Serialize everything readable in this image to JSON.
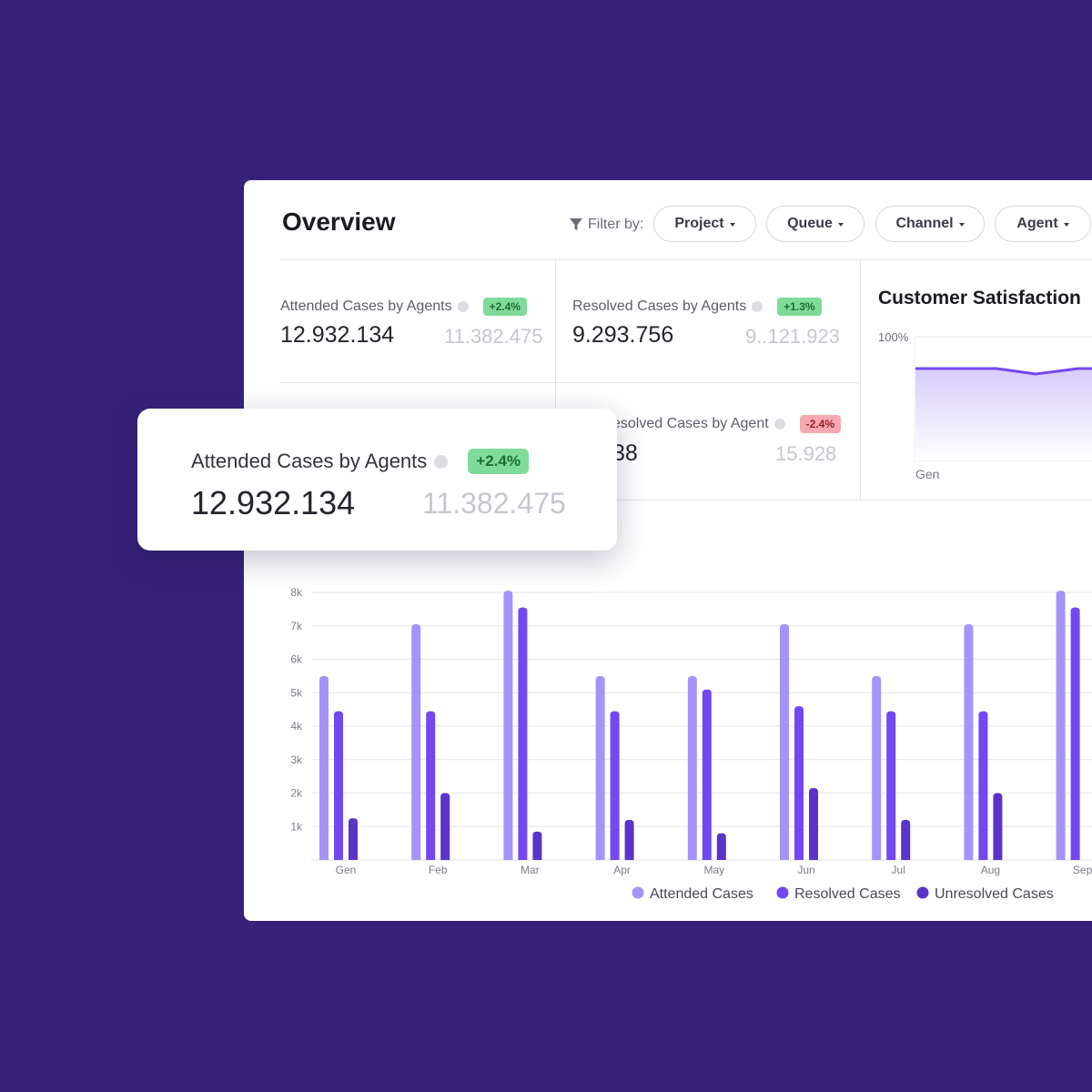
{
  "header": {
    "title": "Overview",
    "filter_label": "Filter by:",
    "filters": [
      {
        "label": "Project"
      },
      {
        "label": "Queue"
      },
      {
        "label": "Channel"
      },
      {
        "label": "Agent"
      }
    ]
  },
  "stats": {
    "attended": {
      "label": "Attended Cases by Agents",
      "badge": "+2.4%",
      "value": "12.932.134",
      "previous": "11.382.475"
    },
    "resolved": {
      "label": "Resolved Cases by Agents",
      "badge": "+1.3%",
      "value": "9.293.756",
      "previous": "9..121.923"
    },
    "unresolved": {
      "label": "esolved Cases by Agent",
      "badge": "-2.4%",
      "value": "38",
      "previous": "15.928"
    }
  },
  "floating_card": {
    "label": "Attended Cases by Agents",
    "badge": "+2.4%",
    "value": "12.932.134",
    "previous": "11.382.475"
  },
  "satisfaction": {
    "title": "Customer Satisfaction",
    "y_tick": "100%",
    "x_tick": "Gen"
  },
  "colors": {
    "background": "#36227a",
    "attended": "#a693f9",
    "resolved": "#7248f2",
    "unresolved": "#5a33c9",
    "badge_up": "#7fdb9a",
    "badge_down": "#f6a9ae"
  },
  "chart_data": {
    "type": "bar",
    "categories": [
      "Gen",
      "Feb",
      "Mar",
      "Apr",
      "May",
      "Jun",
      "Jul",
      "Aug",
      "Sep"
    ],
    "y_ticks": [
      "1k",
      "2k",
      "3k",
      "4k",
      "5k",
      "6k",
      "7k",
      "8k"
    ],
    "ylim": [
      0,
      8000
    ],
    "series": [
      {
        "name": "Attended Cases",
        "color": "#a693f9",
        "values": [
          5500,
          7050,
          8050,
          5500,
          5500,
          7050,
          5500,
          7050,
          8050
        ]
      },
      {
        "name": "Resolved Cases",
        "color": "#7248f2",
        "values": [
          4450,
          4450,
          7550,
          4450,
          5100,
          4600,
          4450,
          4450,
          7550
        ]
      },
      {
        "name": "Unresolved Cases",
        "color": "#5a33c9",
        "values": [
          1250,
          2000,
          850,
          1200,
          800,
          2150,
          1200,
          2000,
          0
        ]
      }
    ],
    "legend": "bottom",
    "grid": true
  }
}
